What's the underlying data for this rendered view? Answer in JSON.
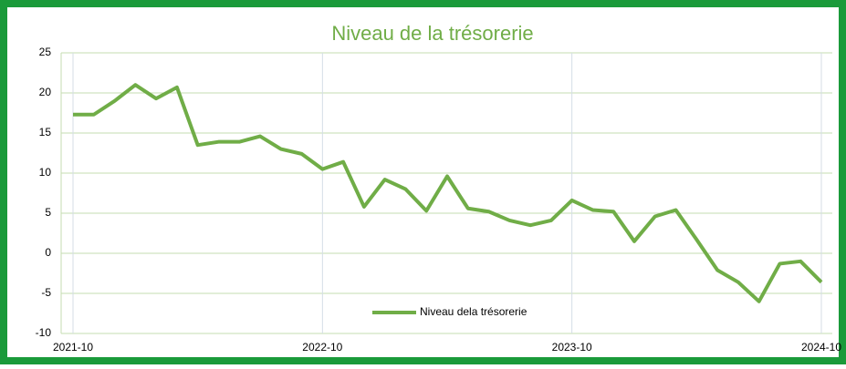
{
  "chart_data": {
    "type": "line",
    "title": "Niveau de la trésorerie",
    "categories": [
      "2021-10",
      null,
      null,
      null,
      null,
      null,
      null,
      null,
      null,
      null,
      null,
      null,
      "2022-10",
      null,
      null,
      null,
      null,
      null,
      null,
      null,
      null,
      null,
      null,
      null,
      "2023-10",
      null,
      null,
      null,
      null,
      null,
      null,
      null,
      null,
      null,
      null,
      null,
      "2024-10"
    ],
    "series": [
      {
        "name": "Niveau dela trésorerie",
        "color": "#70ad47",
        "values": [
          17.3,
          17.3,
          19,
          21,
          19.3,
          20.7,
          13.5,
          13.9,
          13.9,
          14.6,
          13,
          12.4,
          10.5,
          11.4,
          5.8,
          9.2,
          8,
          5.3,
          9.6,
          5.6,
          5.2,
          4.1,
          3.5,
          4.1,
          6.6,
          5.4,
          5.2,
          1.5,
          4.6,
          5.4,
          1.7,
          -2.1,
          -3.6,
          -6,
          -1.3,
          -1,
          -3.6
        ]
      }
    ],
    "ylim": [
      -10,
      25
    ],
    "yticks": [
      -10,
      -5,
      0,
      5,
      10,
      15,
      20,
      25
    ],
    "grid": true,
    "legend": "bottom"
  }
}
